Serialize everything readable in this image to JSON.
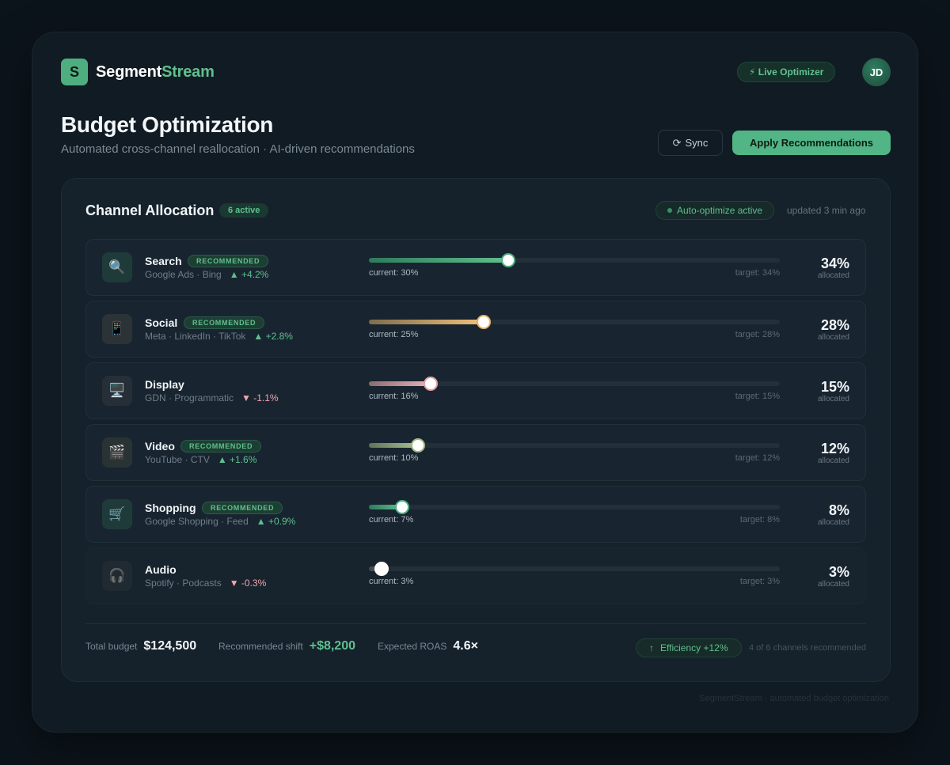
{
  "brand": {
    "mark": "S",
    "name_part1": "Segment",
    "name_part2": "Stream"
  },
  "header": {
    "live_badge": "⚡ Live Optimizer",
    "avatar_initials": "JD"
  },
  "page": {
    "title": "Budget Optimization",
    "subtitle": "Automated cross-channel reallocation · AI-driven recommendations",
    "sync_icon": "⟳",
    "sync_label": "Sync",
    "apply_label": "Apply Recommendations"
  },
  "card": {
    "title": "Channel Allocation",
    "active_count": "6 active",
    "auto_status": "Auto-optimize active",
    "updated": "updated 3 min ago"
  },
  "channels": [
    {
      "icon": "🔍",
      "icon_name": "search-icon",
      "name": "Search",
      "recommended": "RECOMMENDED",
      "sources": "Google Ads · Bing",
      "delta": "▲ +4.2%",
      "trend": "up",
      "current": "current: 30%",
      "target": "target: 34%",
      "percent": "34%",
      "allocated": "allocated",
      "level": 0.34,
      "color_from": "#2f7a5c",
      "color_to": "#5fc08e",
      "thumb_color": "#4fae7f",
      "icon_bg": "#1e3b3a"
    },
    {
      "icon": "📱",
      "icon_name": "mobile-phone-icon",
      "name": "Social",
      "recommended": "RECOMMENDED",
      "sources": "Meta · LinkedIn · TikTok",
      "delta": "▲ +2.8%",
      "trend": "up",
      "current": "current: 25%",
      "target": "target: 28%",
      "percent": "28%",
      "allocated": "allocated",
      "level": 0.28,
      "color_from": "#7d6c4e",
      "color_to": "#f2c27a",
      "thumb_color": "#e7b36a",
      "icon_bg": "#2c3336"
    },
    {
      "icon": "🖥️",
      "icon_name": "desktop-monitor-icon",
      "name": "Display",
      "recommended": "",
      "sources": "GDN · Programmatic",
      "delta": "▼ -1.1%",
      "trend": "down",
      "current": "current: 16%",
      "target": "target: 15%",
      "percent": "15%",
      "allocated": "allocated",
      "level": 0.15,
      "color_from": "#8b6b70",
      "color_to": "#e9b3b9",
      "thumb_color": "#e59ea6",
      "icon_bg": "#262f38"
    },
    {
      "icon": "🎬",
      "icon_name": "clapperboard-icon",
      "name": "Video",
      "recommended": "RECOMMENDED",
      "sources": "YouTube · CTV",
      "delta": "▲ +1.6%",
      "trend": "up",
      "current": "current: 10%",
      "target": "target: 12%",
      "percent": "12%",
      "allocated": "allocated",
      "level": 0.12,
      "color_from": "#637158",
      "color_to": "#a9c094",
      "thumb_color": "#9fba86",
      "icon_bg": "#2a3334"
    },
    {
      "icon": "🛒",
      "icon_name": "shopping-cart-icon",
      "name": "Shopping",
      "recommended": "RECOMMENDED",
      "sources": "Google Shopping · Feed",
      "delta": "▲ +0.9%",
      "trend": "up",
      "current": "current: 7%",
      "target": "target: 8%",
      "percent": "8%",
      "allocated": "allocated",
      "level": 0.08,
      "color_from": "#2f7a5c",
      "color_to": "#5fc08e",
      "thumb_color": "#4fae7f",
      "icon_bg": "#1e3b3a"
    },
    {
      "icon": "🎧",
      "icon_name": "headphones-icon",
      "name": "Audio",
      "recommended": "",
      "sources": "Spotify · Podcasts",
      "delta": "▼ -0.3%",
      "trend": "down",
      "current": "current: 3%",
      "target": "target: 3%",
      "percent": "3%",
      "allocated": "allocated",
      "level": 0.03,
      "color_from": "#3a4650",
      "color_to": "#56626b",
      "thumb_color": "#ffffff",
      "icon_bg": "#1f2a33"
    }
  ],
  "footer": {
    "total_label": "Total budget",
    "total_value": "$124,500",
    "shift_label": "Recommended shift",
    "shift_value": "+$8,200",
    "roas_label": "Expected ROAS",
    "roas_value": "4.6×",
    "efficiency_arrow": "↑",
    "efficiency": "Efficiency +12%",
    "note": "4 of 6 channels recommended"
  },
  "credit": "SegmentStream · automated budget optimization"
}
